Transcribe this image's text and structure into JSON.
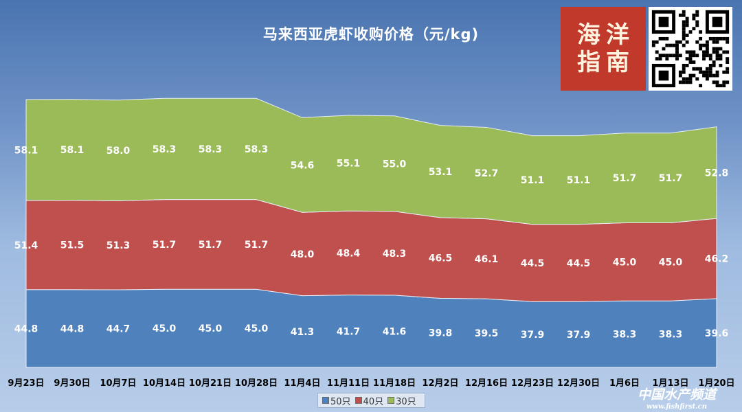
{
  "title": "马来西亚虎虾收购价格（元/kg)",
  "chart_data": {
    "type": "area",
    "title": "马来西亚虎虾收购价格（元/kg)",
    "stacked": true,
    "categories": [
      "9月23日",
      "9月30日",
      "10月7日",
      "10月14日",
      "10月21日",
      "10月28日",
      "11月4日",
      "11月11日",
      "11月18日",
      "12月2日",
      "12月16日",
      "12月23日",
      "12月30日",
      "1月6日",
      "1月13日",
      "1月20日"
    ],
    "series": [
      {
        "name": "50只",
        "color": "#4f81bd",
        "values": [
          44.8,
          44.8,
          44.7,
          45.0,
          45.0,
          45.0,
          41.3,
          41.7,
          41.6,
          39.8,
          39.5,
          37.9,
          37.9,
          38.3,
          38.3,
          39.6
        ]
      },
      {
        "name": "40只",
        "color": "#c0504d",
        "values": [
          51.4,
          51.5,
          51.3,
          51.7,
          51.7,
          51.7,
          48.0,
          48.4,
          48.3,
          46.5,
          46.1,
          44.5,
          44.5,
          45.0,
          45.0,
          46.2
        ]
      },
      {
        "name": "30只",
        "color": "#9bbb59",
        "values": [
          58.1,
          58.1,
          58.0,
          58.3,
          58.3,
          58.3,
          54.6,
          55.1,
          55.0,
          53.1,
          52.7,
          51.1,
          51.1,
          51.7,
          51.7,
          52.8
        ]
      }
    ],
    "legend_position": "bottom",
    "grid": false
  },
  "logo": {
    "chars": [
      "海",
      "洋",
      "指",
      "南"
    ]
  },
  "watermark": {
    "main": "中国水产频道",
    "sub": "www.fishfirst.cn"
  }
}
